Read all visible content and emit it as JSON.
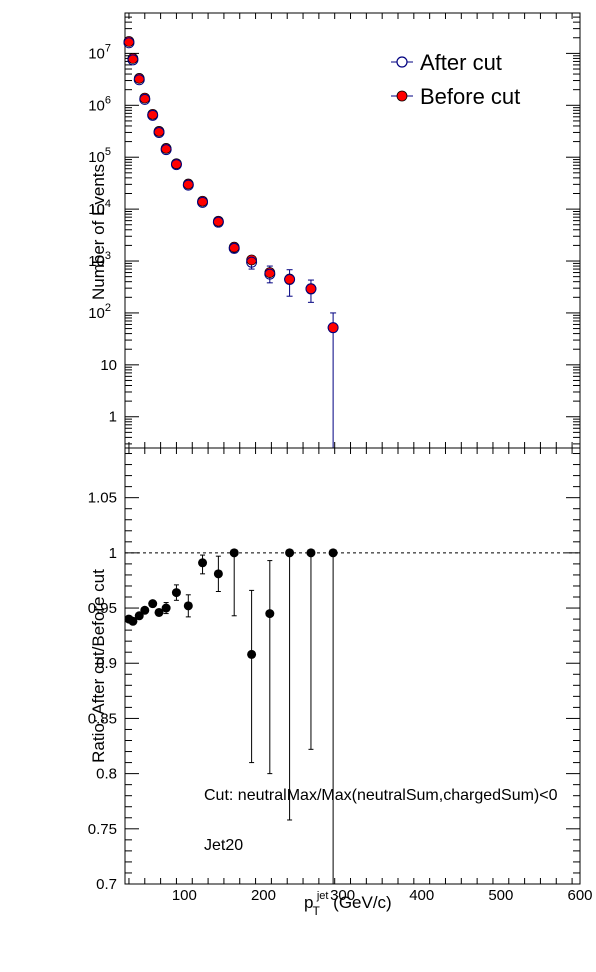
{
  "chart_data": [
    {
      "type": "scatter",
      "panel": "top",
      "ylabel": "Number of Events",
      "yscale": "log",
      "ylim": [
        0.25,
        60000000
      ],
      "xlim": [
        25,
        600
      ],
      "grid": false,
      "legend_position": "top-right",
      "y_tick_labels": [
        {
          "v": 1,
          "base": "1",
          "exp": ""
        },
        {
          "v": 10,
          "base": "10",
          "exp": ""
        },
        {
          "v": 100,
          "base": "10",
          "exp": "2"
        },
        {
          "v": 1000,
          "base": "10",
          "exp": "3"
        },
        {
          "v": 10000,
          "base": "10",
          "exp": "4"
        },
        {
          "v": 100000,
          "base": "10",
          "exp": "5"
        },
        {
          "v": 1000000,
          "base": "10",
          "exp": "6"
        },
        {
          "v": 10000000,
          "base": "10",
          "exp": "7"
        }
      ],
      "series": [
        {
          "name": "After cut",
          "marker": "open-circle",
          "color": "#000080",
          "points": [
            {
              "x": 30,
              "y": 16000000,
              "lo": 16000000,
              "hi": 16000000
            },
            {
              "x": 35,
              "y": 7500000,
              "lo": 7500000,
              "hi": 7500000
            },
            {
              "x": 43,
              "y": 3100000,
              "lo": 3100000,
              "hi": 3100000
            },
            {
              "x": 50,
              "y": 1300000,
              "lo": 1300000,
              "hi": 1300000
            },
            {
              "x": 60,
              "y": 640000,
              "lo": 640000,
              "hi": 640000
            },
            {
              "x": 68,
              "y": 300000,
              "lo": 300000,
              "hi": 300000
            },
            {
              "x": 77,
              "y": 140000,
              "lo": 140000,
              "hi": 140000
            },
            {
              "x": 90,
              "y": 72000,
              "lo": 72000,
              "hi": 72000
            },
            {
              "x": 105,
              "y": 29000,
              "lo": 29000,
              "hi": 29000
            },
            {
              "x": 123,
              "y": 13500,
              "lo": 13500,
              "hi": 13500
            },
            {
              "x": 143,
              "y": 5600,
              "lo": 5600,
              "hi": 5600
            },
            {
              "x": 163,
              "y": 1750,
              "lo": 1450,
              "hi": 2100
            },
            {
              "x": 185,
              "y": 950,
              "lo": 700,
              "hi": 1250
            },
            {
              "x": 208,
              "y": 560,
              "lo": 380,
              "hi": 800
            },
            {
              "x": 233,
              "y": 440,
              "lo": 210,
              "hi": 680
            },
            {
              "x": 260,
              "y": 290,
              "lo": 160,
              "hi": 430
            },
            {
              "x": 288,
              "y": 52,
              "lo": 0.1,
              "hi": 100
            }
          ]
        },
        {
          "name": "Before cut",
          "marker": "filled-circle",
          "color": "#ff0000",
          "points": [
            {
              "x": 30,
              "y": 17000000
            },
            {
              "x": 35,
              "y": 8000000
            },
            {
              "x": 43,
              "y": 3300000
            },
            {
              "x": 50,
              "y": 1380000
            },
            {
              "x": 60,
              "y": 670000
            },
            {
              "x": 68,
              "y": 315000
            },
            {
              "x": 77,
              "y": 148000
            },
            {
              "x": 90,
              "y": 75000
            },
            {
              "x": 105,
              "y": 30500
            },
            {
              "x": 123,
              "y": 14200
            },
            {
              "x": 143,
              "y": 5850
            },
            {
              "x": 163,
              "y": 1850
            },
            {
              "x": 185,
              "y": 1050
            },
            {
              "x": 208,
              "y": 600
            },
            {
              "x": 233,
              "y": 450
            },
            {
              "x": 260,
              "y": 295
            },
            {
              "x": 288,
              "y": 52
            }
          ]
        }
      ]
    },
    {
      "type": "scatter",
      "panel": "bottom",
      "ylabel": "Ratio: After cut/Before cut",
      "ylim": [
        0.7,
        1.095
      ],
      "xlim": [
        25,
        600
      ],
      "x_ticks": [
        100,
        200,
        300,
        400,
        500,
        600
      ],
      "x_tick_labels": [
        "100",
        "200",
        "300",
        "400",
        "500",
        "600"
      ],
      "y_ticks": [
        0.7,
        0.75,
        0.8,
        0.85,
        0.9,
        0.95,
        1,
        1.05
      ],
      "y_tick_labels": [
        "0.7",
        "0.75",
        "0.8",
        "0.85",
        "0.9",
        "0.95",
        "1",
        "1.05"
      ],
      "xlabel": {
        "p": "p",
        "sub": "T",
        "sup": "jet",
        "unit": " (GeV/c)"
      },
      "reference_line": 1,
      "annotations": [
        "Cut: neutralMax/Max(neutralSum,chargedSum)<0",
        "Jet20"
      ],
      "series": [
        {
          "name": "",
          "marker": "filled-circle",
          "color": "#000000",
          "points": [
            {
              "x": 30,
              "y": 0.94,
              "lo": 0.939,
              "hi": 0.941
            },
            {
              "x": 35,
              "y": 0.938,
              "lo": 0.937,
              "hi": 0.939
            },
            {
              "x": 43,
              "y": 0.943,
              "lo": 0.942,
              "hi": 0.944
            },
            {
              "x": 50,
              "y": 0.948,
              "lo": 0.947,
              "hi": 0.949
            },
            {
              "x": 60,
              "y": 0.954,
              "lo": 0.952,
              "hi": 0.956
            },
            {
              "x": 68,
              "y": 0.946,
              "lo": 0.943,
              "hi": 0.949
            },
            {
              "x": 77,
              "y": 0.95,
              "lo": 0.945,
              "hi": 0.955
            },
            {
              "x": 90,
              "y": 0.964,
              "lo": 0.957,
              "hi": 0.971
            },
            {
              "x": 105,
              "y": 0.952,
              "lo": 0.942,
              "hi": 0.962
            },
            {
              "x": 123,
              "y": 0.991,
              "lo": 0.981,
              "hi": 0.998
            },
            {
              "x": 143,
              "y": 0.981,
              "lo": 0.965,
              "hi": 0.997
            },
            {
              "x": 163,
              "y": 1.0,
              "lo": 0.943,
              "hi": 1.0
            },
            {
              "x": 185,
              "y": 0.908,
              "lo": 0.81,
              "hi": 0.966
            },
            {
              "x": 208,
              "y": 0.945,
              "lo": 0.8,
              "hi": 0.993
            },
            {
              "x": 233,
              "y": 1.0,
              "lo": 0.758,
              "hi": 1.0
            },
            {
              "x": 260,
              "y": 1.0,
              "lo": 0.822,
              "hi": 1.0
            },
            {
              "x": 288,
              "y": 1.0,
              "lo": 0.69,
              "hi": 1.0
            }
          ]
        }
      ]
    }
  ]
}
